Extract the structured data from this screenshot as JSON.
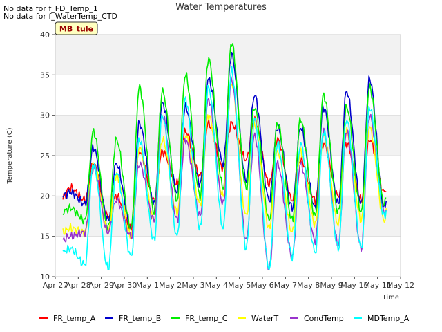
{
  "notes": [
    "No data for f_FD_Temp_1",
    "No data for f_WaterTemp_CTD"
  ],
  "site_label": "MB_tule",
  "chart_data": {
    "type": "line",
    "title": "Water Temperatures",
    "xlabel": "Time",
    "ylabel": "Temperature (C)",
    "ylim": [
      10,
      40
    ],
    "xlim": [
      "2021-04-27",
      "2021-05-12"
    ],
    "yticks": [
      10,
      15,
      20,
      25,
      30,
      35,
      40
    ],
    "xtick_labels": [
      "Apr 27",
      "Apr 28",
      "Apr 29",
      "Apr 30",
      "May 1",
      "May 2",
      "May 3",
      "May 4",
      "May 5",
      "May 6",
      "May 7",
      "May 8",
      "May 9",
      "May 10",
      "May 11",
      "May 12"
    ],
    "grid": true,
    "background_bands": "alternating grey",
    "legend_position": "bottom",
    "series": [
      {
        "name": "FR_temp_A",
        "color": "#ff0000",
        "min": [
          19.8,
          19.5,
          17.5,
          16.0,
          19.5,
          21.5,
          22.5,
          23.5,
          24.5,
          21.5,
          19.5,
          19.5,
          20.0,
          19.5,
          20.5
        ],
        "max": [
          21.0,
          24.0,
          20.0,
          25.5,
          25.5,
          28.0,
          29.0,
          29.0,
          29.5,
          27.0,
          24.5,
          26.5,
          26.5,
          27.0,
          25.0
        ]
      },
      {
        "name": "FR_temp_B",
        "color": "#0000cc",
        "min": [
          20.0,
          19.0,
          17.0,
          16.0,
          19.0,
          20.5,
          21.5,
          24.0,
          22.0,
          19.5,
          18.5,
          18.5,
          19.0,
          19.0,
          18.5
        ],
        "max": [
          20.5,
          26.0,
          24.0,
          29.0,
          31.5,
          31.0,
          34.5,
          37.5,
          32.5,
          28.5,
          28.5,
          31.0,
          33.0,
          34.5,
          27.0
        ]
      },
      {
        "name": "FR_temp_C",
        "color": "#00ee00",
        "min": [
          18.0,
          17.0,
          16.0,
          16.0,
          18.0,
          19.5,
          20.0,
          21.0,
          21.0,
          17.0,
          17.0,
          17.5,
          18.0,
          18.0,
          19.0
        ],
        "max": [
          18.5,
          28.0,
          27.0,
          33.5,
          33.0,
          35.0,
          37.0,
          39.0,
          31.0,
          29.0,
          29.5,
          32.5,
          31.0,
          33.5,
          27.5
        ]
      },
      {
        "name": "WaterT",
        "color": "#ffff00",
        "min": [
          15.5,
          15.5,
          15.5,
          15.0,
          17.0,
          18.0,
          19.0,
          20.0,
          17.5,
          16.0,
          15.5,
          16.5,
          16.5,
          17.0,
          17.0
        ],
        "max": [
          16.0,
          24.0,
          22.5,
          26.0,
          27.0,
          27.5,
          30.0,
          34.0,
          29.0,
          25.5,
          25.5,
          27.5,
          28.0,
          28.5,
          25.0
        ]
      },
      {
        "name": "CondTemp",
        "color": "#9933cc",
        "min": [
          14.5,
          15.5,
          15.5,
          15.0,
          17.0,
          17.0,
          17.5,
          19.0,
          14.5,
          11.0,
          12.5,
          14.5,
          14.0,
          13.5,
          18.0
        ],
        "max": [
          15.0,
          23.5,
          19.5,
          24.0,
          30.0,
          27.0,
          32.0,
          34.5,
          27.5,
          24.0,
          24.0,
          28.0,
          28.0,
          30.0,
          21.0
        ]
      },
      {
        "name": "MDTemp_A",
        "color": "#00ffff",
        "min": [
          13.0,
          11.5,
          11.0,
          12.5,
          14.5,
          15.0,
          16.0,
          16.0,
          13.5,
          11.0,
          12.5,
          13.0,
          13.5,
          13.5,
          17.5
        ],
        "max": [
          13.5,
          24.0,
          23.0,
          27.0,
          30.0,
          32.0,
          33.5,
          35.5,
          29.5,
          26.5,
          26.5,
          28.0,
          29.5,
          31.0,
          24.0
        ]
      }
    ]
  }
}
